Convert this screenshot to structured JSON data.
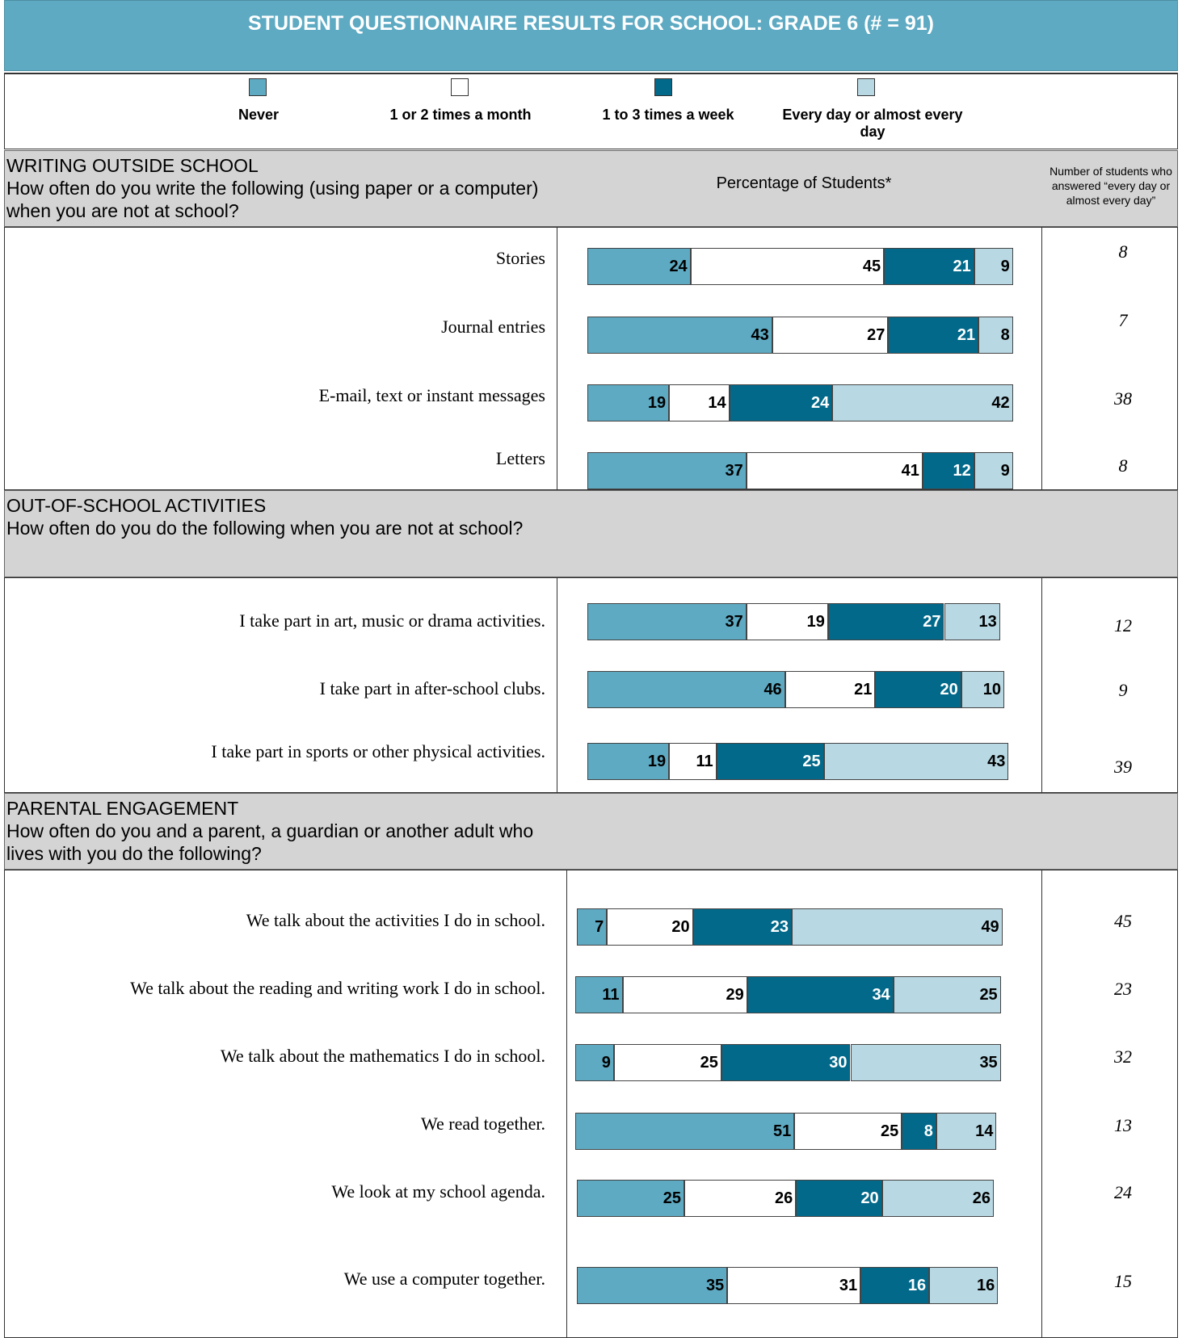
{
  "title": "STUDENT QUESTIONNAIRE RESULTS FOR SCHOOL: GRADE 6 (# = 91)",
  "colors": {
    "never": "#5eaac3",
    "monthly": "#ffffff",
    "weekly": "#03698a",
    "daily": "#b8d8e3",
    "header_bg": "#d4d4d4"
  },
  "legend": [
    "Never",
    "1 or 2 times a month",
    "1 to 3 times a week",
    "Every day or almost every day"
  ],
  "percent_header": "Percentage of Students*",
  "count_header": "Number of students who answered “every day or almost every day”",
  "chart_data": [
    {
      "type": "bar",
      "title": "WRITING OUTSIDE SCHOOL",
      "subtitle": "How often do you write the following (using paper or  a computer) when you are not at school?",
      "categories": [
        "Stories",
        "Journal entries",
        "E-mail, text or instant messages",
        "Letters"
      ],
      "series": [
        {
          "name": "Never",
          "values": [
            24,
            43,
            19,
            37
          ]
        },
        {
          "name": "1 or 2 times a month",
          "values": [
            45,
            27,
            14,
            41
          ]
        },
        {
          "name": "1 to 3 times a week",
          "values": [
            21,
            21,
            24,
            12
          ]
        },
        {
          "name": "Every day or almost every day",
          "values": [
            9,
            8,
            42,
            9
          ]
        }
      ],
      "counts": [
        "8",
        "7",
        "38",
        "8"
      ]
    },
    {
      "type": "bar",
      "title": "OUT-OF-SCHOOL ACTIVITIES",
      "subtitle": "How often do you do the following when you are not  at school?",
      "categories": [
        "I take part in art, music or drama activities.",
        "I take part in after-school clubs.",
        "I take part in sports or other physical activities."
      ],
      "series": [
        {
          "name": "Never",
          "values": [
            37,
            46,
            19
          ]
        },
        {
          "name": "1 or 2 times a month",
          "values": [
            19,
            21,
            11
          ]
        },
        {
          "name": "1 to 3 times a week",
          "values": [
            27,
            20,
            25
          ]
        },
        {
          "name": "Every day or almost every day",
          "values": [
            13,
            10,
            43
          ]
        }
      ],
      "counts": [
        "12",
        "9",
        "39"
      ]
    },
    {
      "type": "bar",
      "title": "PARENTAL ENGAGEMENT",
      "subtitle": "How often do you and a parent, a guardian or  another adult who lives with you do the following?",
      "categories": [
        "We talk about the activities I do in school.",
        "We talk about the reading and writing work I do in school.",
        "We talk about the mathematics I do in school.",
        "We read together.",
        "We look at my school agenda.",
        "We use a computer together."
      ],
      "series": [
        {
          "name": "Never",
          "values": [
            7,
            11,
            9,
            51,
            25,
            35
          ]
        },
        {
          "name": "1 or 2 times a month",
          "values": [
            20,
            29,
            25,
            25,
            26,
            31
          ]
        },
        {
          "name": "1 to 3 times a week",
          "values": [
            23,
            34,
            30,
            8,
            20,
            16
          ]
        },
        {
          "name": "Every day or almost every day",
          "values": [
            49,
            25,
            35,
            14,
            26,
            16
          ]
        }
      ],
      "counts": [
        "45",
        "23",
        "32",
        "13",
        "24",
        "15"
      ]
    }
  ]
}
